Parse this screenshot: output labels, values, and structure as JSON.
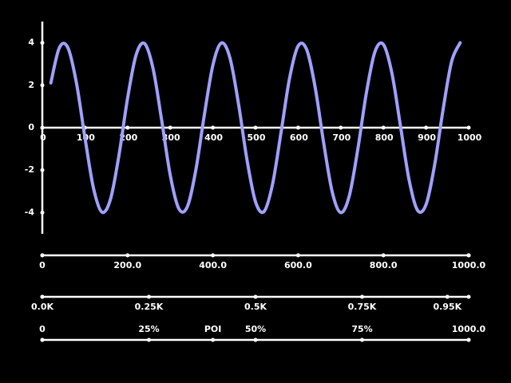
{
  "chart_data": [
    {
      "type": "line",
      "x": [
        20,
        40,
        60,
        80,
        100,
        120,
        140,
        160,
        180,
        200,
        220,
        240,
        260,
        280,
        300,
        320,
        340,
        360,
        380,
        400,
        420,
        440,
        460,
        480,
        500,
        520,
        540,
        560,
        580,
        600,
        620,
        640,
        660,
        680,
        700,
        720,
        740,
        760,
        780,
        800,
        820,
        840,
        860,
        880,
        900,
        920,
        940,
        960,
        980
      ],
      "series": [
        {
          "color": "#a0a0ff",
          "values": [
            2.11,
            3.77,
            3.77,
            2.11,
            -0.47,
            -2.85,
            -3.98,
            -3.36,
            -1.27,
            1.39,
            3.43,
            3.96,
            2.76,
            0.34,
            -2.23,
            -3.81,
            -3.73,
            -2.0,
            0.6,
            2.94,
            3.99,
            3.29,
            1.14,
            -1.51,
            -3.49,
            -3.95,
            -2.66,
            -0.21,
            2.34,
            3.85,
            3.68,
            1.89,
            -0.73,
            -3.03,
            -4.0,
            -3.21,
            -1.01,
            1.63,
            3.57,
            3.92,
            2.56,
            0.08,
            -2.44,
            -3.89,
            -3.62,
            -1.77,
            0.86,
            3.12,
            4.0
          ]
        }
      ],
      "xlim": [
        0,
        1000
      ],
      "xticks": [
        0,
        100,
        200,
        300,
        400,
        500,
        600,
        700,
        800,
        900,
        1000
      ],
      "ylim": [
        -5,
        5
      ],
      "yticks": [
        -4,
        -2,
        0,
        2,
        4
      ]
    },
    {
      "type": "axis",
      "xlim": [
        0,
        1000
      ],
      "xticks": [
        0,
        {
          "value": 200,
          "label": "200.0"
        },
        {
          "value": 400,
          "label": "400.0"
        },
        {
          "value": 600,
          "label": "600.0"
        },
        {
          "value": 800,
          "label": "800.0"
        },
        {
          "value": 1000,
          "label": "1000.0"
        }
      ]
    },
    {
      "type": "axis",
      "xlim": [
        0,
        1000
      ],
      "xticks": [
        {
          "value": 0,
          "label": "0.0K"
        },
        {
          "value": 250,
          "label": "0.25K"
        },
        {
          "value": 500,
          "label": "0.5K"
        },
        {
          "value": 750,
          "label": "0.75K"
        },
        {
          "value": 950,
          "label": "0.95K"
        }
      ]
    },
    {
      "type": "axis",
      "xlim": [
        0,
        1000
      ],
      "xticks": [
        0,
        {
          "value": 250,
          "label": "25%"
        },
        {
          "value": 400,
          "label": "POI"
        },
        {
          "value": 500,
          "label": "50%"
        },
        {
          "value": 750,
          "label": "75%"
        },
        {
          "value": 1000,
          "label": "1000.0"
        }
      ]
    }
  ]
}
